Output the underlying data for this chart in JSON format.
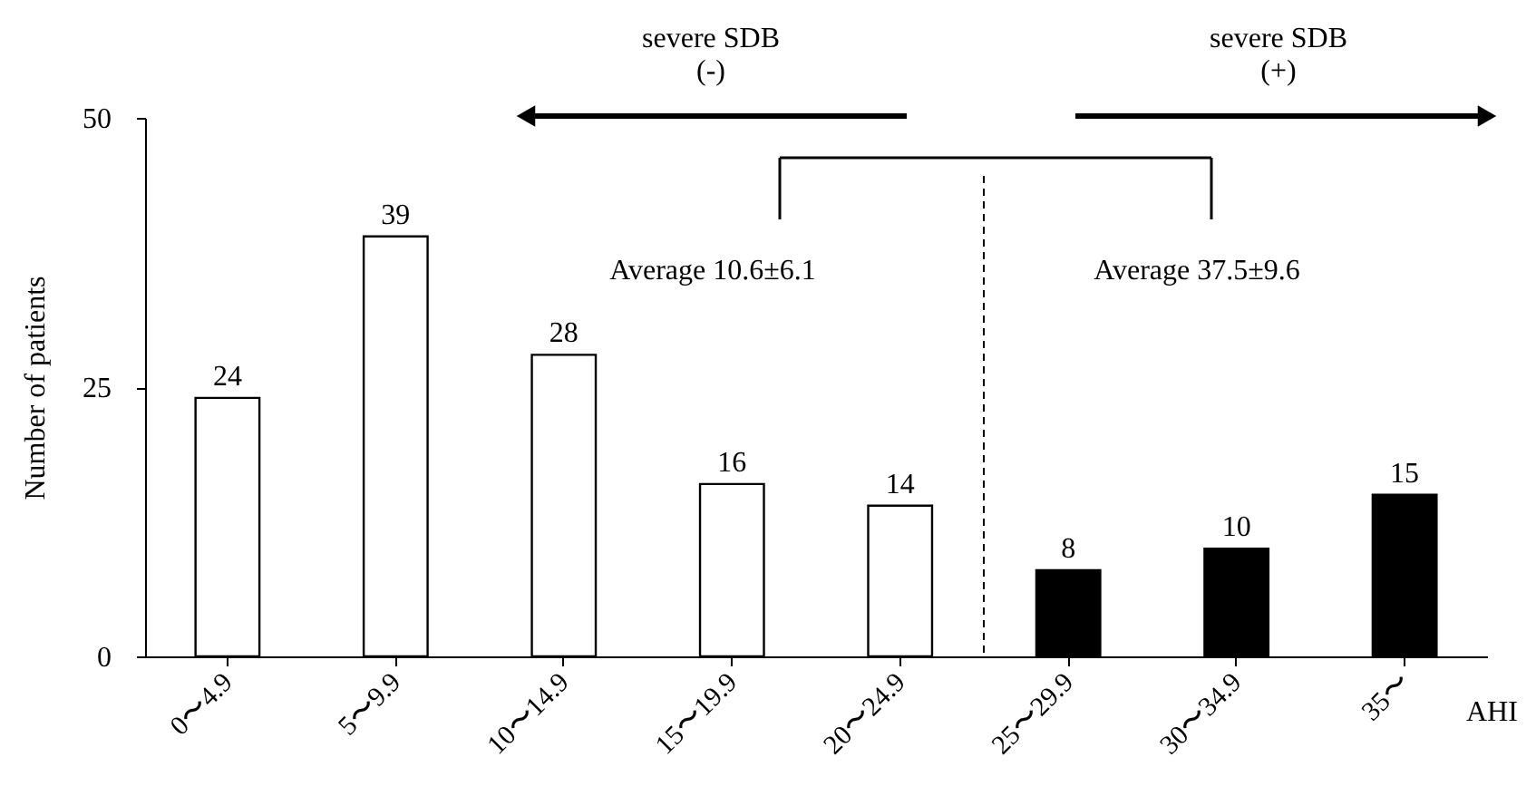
{
  "chart_data": {
    "type": "bar",
    "categories": [
      "0〜4.9",
      "5〜9.9",
      "10〜14.9",
      "15〜19.9",
      "20〜24.9",
      "25〜29.9",
      "30〜34.9",
      "35〜"
    ],
    "values": [
      24,
      39,
      28,
      16,
      14,
      8,
      10,
      15
    ],
    "colors": [
      "#ffffff",
      "#ffffff",
      "#ffffff",
      "#ffffff",
      "#ffffff",
      "#000000",
      "#000000",
      "#000000"
    ],
    "xlabel": "AHI",
    "ylabel": "Number of patients",
    "ylim": [
      0,
      50
    ],
    "yticks": [
      0,
      25,
      50
    ],
    "grid": false,
    "data_labels": true,
    "annotations": [
      "severe SDB\n(-)",
      "severe SDB\n(+)",
      "Average 10.6±6.1",
      "Average 37.5±9.6"
    ]
  }
}
